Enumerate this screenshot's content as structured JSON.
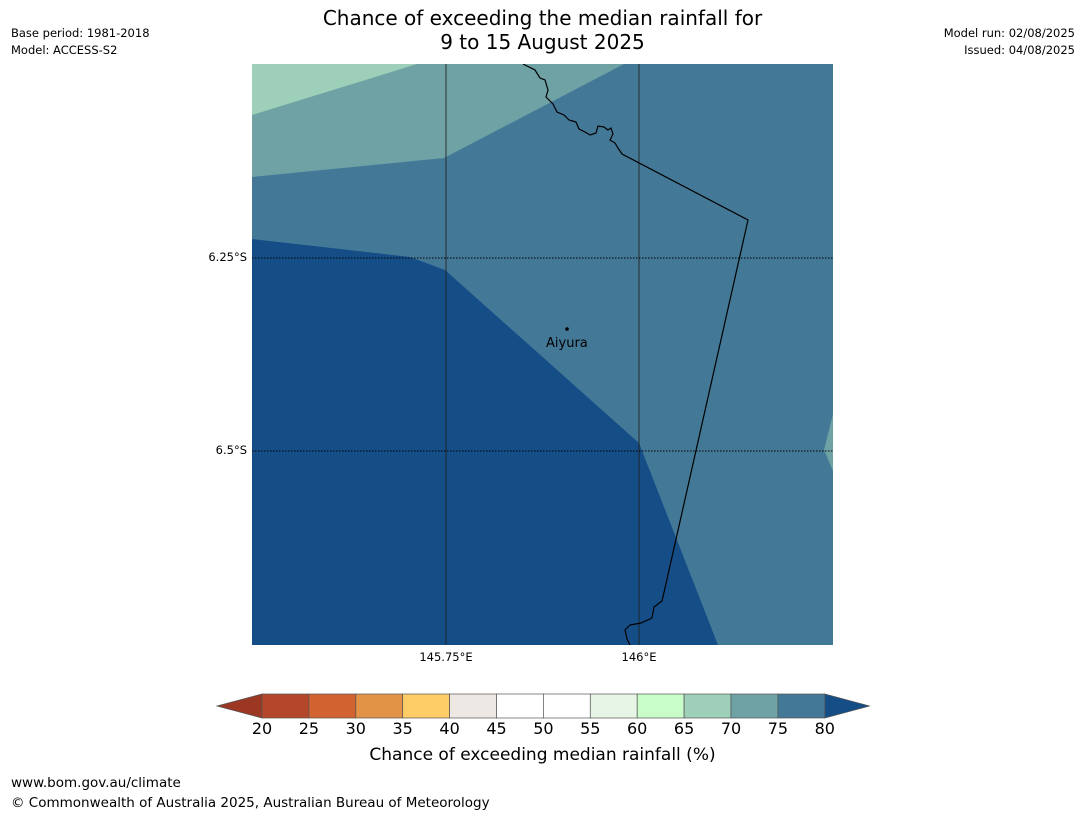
{
  "title_line1": "Chance of exceeding the median rainfall for",
  "title_line2": "9 to 15 August 2025",
  "meta_left": [
    "Base period: 1981-2018",
    "Model: ACCESS-S2"
  ],
  "meta_right": [
    "Model run: 02/08/2025",
    "Issued: 04/08/2025"
  ],
  "map": {
    "lat_labels": [
      "6.25°S",
      "6.5°S"
    ],
    "lon_labels": [
      "145.75°E",
      "146°E"
    ],
    "place": "Aiyura",
    "colors": {
      "c65_70": "#9ecfb8",
      "c70_75": "#6fa2a5",
      "c75_80": "#437997",
      "c80_plus": "#154e87"
    }
  },
  "colorbar": {
    "ticks": [
      "20",
      "25",
      "30",
      "35",
      "40",
      "45",
      "50",
      "55",
      "60",
      "65",
      "70",
      "75",
      "80"
    ],
    "colors": [
      "#b4472a",
      "#d2622f",
      "#e39346",
      "#fecd67",
      "#ede8e3",
      "#ffffff",
      "#ffffff",
      "#e6f5e6",
      "#c8fcc9",
      "#9ecfb8",
      "#6fa2a5",
      "#437997"
    ],
    "under_color": "#9b3722",
    "over_color": "#154e87",
    "label": "Chance of exceeding median rainfall (%)"
  },
  "footer": {
    "url": "www.bom.gov.au/climate",
    "copyright": "© Commonwealth of Australia 2025, Australian Bureau of Meteorology"
  }
}
